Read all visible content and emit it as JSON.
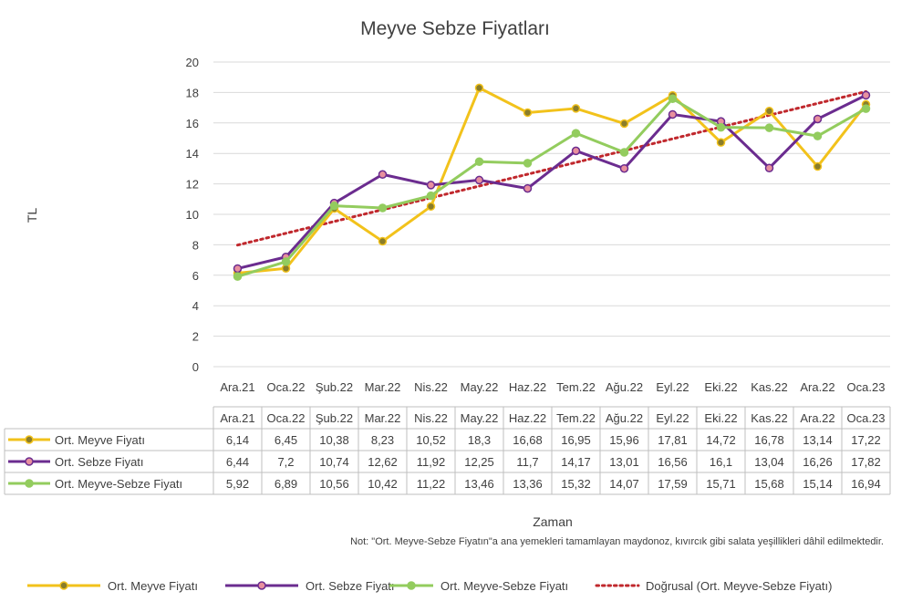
{
  "chart_data": {
    "type": "line",
    "title": "Meyve Sebze Fiyatları",
    "ylabel": "TL",
    "xlabel": "Zaman",
    "ylim": [
      0,
      20
    ],
    "yticks": [
      0,
      2,
      4,
      6,
      8,
      10,
      12,
      14,
      16,
      18,
      20
    ],
    "grid": true,
    "legend_position": "bottom",
    "categories": [
      "Ara.21",
      "Oca.22",
      "Şub.22",
      "Mar.22",
      "Nis.22",
      "May.22",
      "Haz.22",
      "Tem.22",
      "Ağu.22",
      "Eyl.22",
      "Eki.22",
      "Kas.22",
      "Ara.22",
      "Oca.23"
    ],
    "series": [
      {
        "name": "Ort. Meyve Fiyatı",
        "color": "#f2c21b",
        "marker_fill": "#8a7d2a",
        "values": [
          6.14,
          6.45,
          10.38,
          8.23,
          10.52,
          18.3,
          16.68,
          16.95,
          15.96,
          17.81,
          14.72,
          16.78,
          13.14,
          17.22
        ],
        "labels": [
          "6,14",
          "6,45",
          "10,38",
          "8,23",
          "10,52",
          "18,3",
          "16,68",
          "16,95",
          "15,96",
          "17,81",
          "14,72",
          "16,78",
          "13,14",
          "17,22"
        ]
      },
      {
        "name": "Ort. Sebze Fiyatı",
        "color": "#6b2c8f",
        "marker_fill": "#e8909e",
        "values": [
          6.44,
          7.2,
          10.74,
          12.62,
          11.92,
          12.25,
          11.7,
          14.17,
          13.01,
          16.56,
          16.1,
          13.04,
          16.26,
          17.82
        ],
        "labels": [
          "6,44",
          "7,2",
          "10,74",
          "12,62",
          "11,92",
          "12,25",
          "11,7",
          "14,17",
          "13,01",
          "16,56",
          "16,1",
          "13,04",
          "16,26",
          "17,82"
        ]
      },
      {
        "name": "Ort. Meyve-Sebze Fiyatı",
        "color": "#93cc5e",
        "marker_fill": "#93cc5e",
        "values": [
          5.92,
          6.89,
          10.56,
          10.42,
          11.22,
          13.46,
          13.36,
          15.32,
          14.07,
          17.59,
          15.71,
          15.68,
          15.14,
          16.94
        ],
        "labels": [
          "5,92",
          "6,89",
          "10,56",
          "10,42",
          "11,22",
          "13,46",
          "13,36",
          "15,32",
          "14,07",
          "17,59",
          "15,71",
          "15,68",
          "15,14",
          "16,94"
        ]
      }
    ],
    "trendline": {
      "name": "Doğrusal (Ort. Meyve-Sebze Fiyatı)",
      "color": "#c0282d",
      "of_series": 2
    },
    "note": "Not: \"Ort. Meyve-Sebze Fiyatın\"a ana yemekleri tamamlayan maydonoz, kıvırcık gibi salata yeşillikleri dâhil edilmektedir."
  }
}
